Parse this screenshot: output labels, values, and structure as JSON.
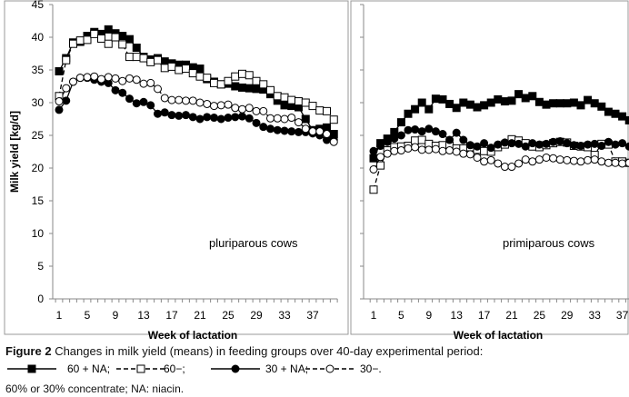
{
  "chart_data": [
    {
      "type": "line",
      "panel_label": "pluriparous cows",
      "xlabel": "Week of lactation",
      "ylabel": "Milk yield [kg/d]",
      "ylim": [
        0,
        45
      ],
      "yticks": [
        0,
        5,
        10,
        15,
        20,
        25,
        30,
        35,
        40,
        45
      ],
      "xticks": [
        1,
        5,
        9,
        13,
        17,
        21,
        25,
        29,
        33,
        37
      ],
      "grid": false,
      "x": [
        1,
        2,
        3,
        4,
        5,
        6,
        7,
        8,
        9,
        10,
        11,
        12,
        13,
        14,
        15,
        16,
        17,
        18,
        19,
        20,
        21,
        22,
        23,
        24,
        25,
        26,
        27,
        28,
        29,
        30,
        31,
        32,
        33,
        34,
        35,
        36,
        37,
        38,
        39,
        40
      ],
      "series": [
        {
          "name": "60 + NA",
          "values": [
            34.8,
            36.8,
            39.2,
            39.3,
            40.2,
            40.8,
            40.5,
            41.2,
            40.6,
            40.2,
            39.7,
            38.4,
            37.0,
            36.6,
            36.8,
            36.3,
            36.0,
            35.8,
            35.8,
            35.4,
            35.2,
            33.6,
            33.2,
            32.8,
            32.9,
            32.5,
            32.3,
            32.2,
            32.1,
            32.0,
            31.3,
            30.3,
            29.6,
            29.5,
            29.3,
            27.5,
            25.8,
            26.0,
            26.2,
            25.2
          ]
        },
        {
          "name": "60−",
          "values": [
            31.0,
            36.5,
            39.0,
            39.5,
            39.6,
            40.5,
            39.8,
            39.0,
            40.0,
            38.9,
            37.0,
            37.0,
            36.8,
            36.2,
            36.5,
            35.3,
            35.5,
            35.0,
            35.2,
            34.5,
            34.0,
            33.8,
            33.0,
            32.8,
            33.3,
            34.0,
            34.4,
            34.2,
            33.3,
            32.8,
            31.9,
            31.0,
            30.8,
            30.4,
            30.2,
            30.0,
            29.5,
            28.8,
            28.7,
            27.4
          ]
        },
        {
          "name": "30 + NA",
          "values": [
            28.9,
            30.3,
            33.2,
            33.8,
            33.8,
            33.5,
            33.2,
            33.0,
            31.9,
            31.5,
            30.6,
            29.9,
            30.1,
            29.6,
            28.3,
            28.5,
            28.1,
            28.0,
            28.1,
            27.8,
            27.5,
            27.8,
            27.7,
            27.5,
            27.7,
            27.8,
            27.9,
            27.6,
            26.9,
            26.3,
            26.0,
            25.8,
            25.7,
            25.6,
            25.5,
            25.5,
            25.3,
            25.0,
            24.3,
            24.3
          ]
        },
        {
          "name": "30−",
          "values": [
            30.2,
            32.2,
            33.2,
            33.8,
            33.9,
            34.0,
            33.6,
            33.9,
            33.7,
            33.3,
            33.7,
            33.5,
            32.9,
            33.0,
            32.1,
            30.7,
            30.4,
            30.4,
            30.3,
            30.3,
            30.0,
            29.8,
            29.5,
            29.6,
            29.7,
            29.2,
            29.0,
            29.2,
            28.7,
            28.7,
            27.6,
            27.6,
            27.5,
            27.7,
            27.0,
            26.0,
            25.6,
            25.6,
            25.2,
            24.0
          ]
        }
      ]
    },
    {
      "type": "line",
      "panel_label": "primiparous cows",
      "xlabel": "Week of lactation",
      "ylim": [
        0,
        45
      ],
      "xticks": [
        1,
        5,
        9,
        13,
        17,
        21,
        25,
        29,
        33,
        37
      ],
      "grid": false,
      "x": [
        1,
        2,
        3,
        4,
        5,
        6,
        7,
        8,
        9,
        10,
        11,
        12,
        13,
        14,
        15,
        16,
        17,
        18,
        19,
        20,
        21,
        22,
        23,
        24,
        25,
        26,
        27,
        28,
        29,
        30,
        31,
        32,
        33,
        34,
        35,
        36,
        37,
        38,
        39,
        40
      ],
      "series": [
        {
          "name": "60 + NA",
          "values": [
            21.5,
            23.8,
            24.5,
            25.5,
            27.0,
            28.3,
            29.0,
            30.0,
            29.0,
            30.6,
            30.5,
            29.8,
            29.2,
            30.0,
            29.7,
            29.3,
            29.6,
            30.0,
            30.5,
            30.2,
            30.3,
            31.3,
            30.7,
            31.0,
            30.1,
            29.7,
            29.9,
            29.9,
            29.9,
            30.0,
            29.6,
            30.4,
            29.9,
            29.4,
            28.6,
            28.3,
            27.9,
            27.3,
            24.0,
            23.8
          ]
        },
        {
          "name": "60−",
          "values": [
            16.7,
            20.4,
            22.7,
            23.2,
            23.3,
            23.4,
            24.2,
            24.3,
            23.7,
            23.4,
            23.5,
            23.4,
            23.0,
            23.0,
            23.2,
            22.8,
            22.6,
            22.5,
            23.2,
            23.6,
            24.4,
            24.2,
            23.8,
            23.3,
            23.2,
            23.5,
            23.8,
            24.0,
            23.9,
            23.4,
            23.3,
            23.2,
            22.0,
            23.7,
            23.6,
            21.0,
            21.0,
            20.8,
            21.0,
            20.6
          ]
        },
        {
          "name": "30 + NA",
          "values": [
            22.6,
            23.4,
            24.0,
            24.5,
            25.0,
            25.8,
            25.9,
            25.6,
            26.0,
            25.6,
            25.2,
            24.3,
            25.4,
            24.3,
            23.5,
            23.3,
            23.8,
            23.1,
            23.6,
            23.9,
            23.8,
            23.7,
            23.3,
            23.8,
            23.6,
            23.7,
            24.0,
            24.1,
            23.8,
            23.5,
            23.4,
            23.6,
            23.7,
            23.4,
            24.0,
            23.6,
            23.8,
            23.3,
            23.2,
            22.9
          ]
        },
        {
          "name": "30−",
          "values": [
            19.8,
            21.7,
            22.2,
            22.6,
            22.7,
            23.0,
            23.2,
            22.8,
            22.8,
            22.9,
            22.6,
            22.7,
            22.5,
            22.2,
            22.1,
            21.6,
            21.0,
            21.2,
            20.7,
            20.2,
            20.2,
            20.7,
            21.3,
            21.0,
            21.3,
            21.6,
            21.5,
            21.3,
            21.2,
            21.1,
            21.0,
            21.2,
            21.3,
            21.0,
            20.8,
            20.8,
            20.7,
            20.8,
            20.6,
            20.6
          ]
        }
      ]
    }
  ],
  "caption": {
    "figure_label": "Figure 2",
    "text": " Changes in milk yield (means) in feeding groups over 40-day experimental period:",
    "legend": [
      "60 + NA;",
      "60−;",
      "30 + NA;",
      "30−."
    ],
    "note": "60% or 30% concentrate; NA: niacin."
  }
}
